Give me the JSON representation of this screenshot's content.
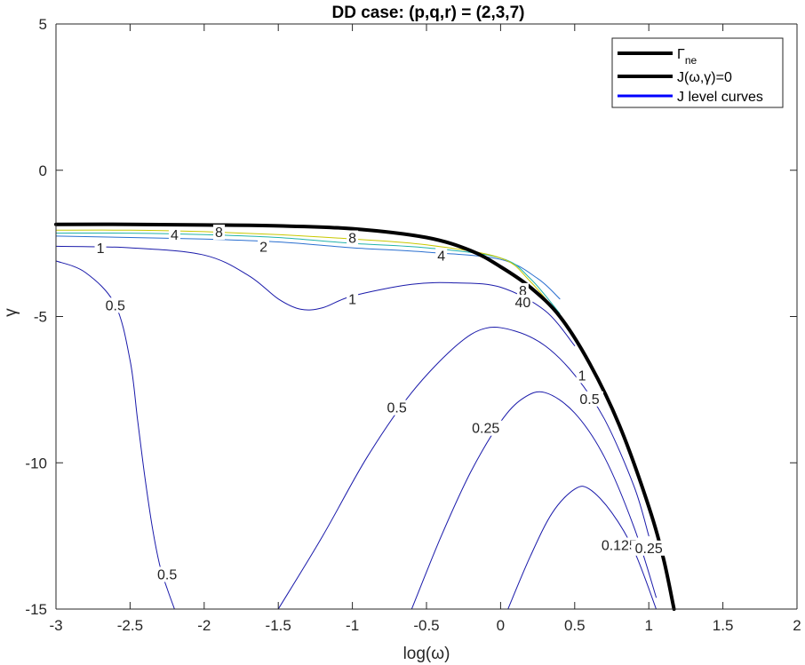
{
  "chart_data": {
    "type": "line",
    "title": "DD case: (p,q,r) = (2,3,7)",
    "xlabel": "log(ω)",
    "ylabel": "γ",
    "xlim": [
      -3,
      2
    ],
    "ylim": [
      -15,
      5
    ],
    "xticks": [
      "-3",
      "-2.5",
      "-2",
      "-1.5",
      "-1",
      "-0.5",
      "0",
      "0.5",
      "1",
      "1.5",
      "2"
    ],
    "yticks": [
      "5",
      "0",
      "-5",
      "-10",
      "-15"
    ],
    "grid": false,
    "legend": {
      "placement": "top-right",
      "entries": [
        {
          "label_main": "Γ",
          "label_sub": "ne",
          "color": "#000000"
        },
        {
          "label_main": "J(ω,γ)=0",
          "color": "#000000"
        },
        {
          "label_main": "J level curves",
          "color": "#0000ff"
        }
      ]
    },
    "series": [
      {
        "name": "Γ_ne",
        "color": "#000000",
        "x": [
          -3,
          -2.5,
          -2,
          -1.5,
          -1,
          -0.5,
          -0.2,
          0,
          0.2,
          0.4,
          0.6,
          0.8,
          1.0,
          1.1,
          1.17
        ],
        "y": [
          -1.85,
          -1.85,
          -1.87,
          -1.9,
          -2.0,
          -2.3,
          -2.75,
          -3.3,
          -4.0,
          -5.0,
          -6.6,
          -8.7,
          -11.5,
          -13.3,
          -15
        ]
      },
      {
        "name": "J level 0.5 (left branch)",
        "color": "#1a1aaa",
        "x": [
          -3,
          -2.8,
          -2.6,
          -2.5,
          -2.45,
          -2.4,
          -2.35,
          -2.3,
          -2.25,
          -2.2
        ],
        "y": [
          -3.1,
          -3.5,
          -4.6,
          -6.5,
          -8.5,
          -10.5,
          -12.2,
          -13.5,
          -14.3,
          -15
        ]
      },
      {
        "name": "J level 1",
        "color": "#1a1aaa",
        "x": [
          -3,
          -2.5,
          -2.0,
          -1.7,
          -1.5,
          -1.35,
          -1.2,
          -1.0,
          -0.6,
          -0.3,
          0,
          0.3,
          0.5
        ],
        "y": [
          -2.6,
          -2.65,
          -2.9,
          -3.6,
          -4.4,
          -4.75,
          -4.7,
          -4.3,
          -3.9,
          -3.85,
          -4.0,
          -4.8,
          -6.0
        ]
      },
      {
        "name": "J level 2",
        "color": "#2a6fd0",
        "x": [
          -3,
          -2.5,
          -2.0,
          -1.5,
          -1.0,
          -0.5,
          0,
          0.25,
          0.4
        ],
        "y": [
          -2.25,
          -2.3,
          -2.35,
          -2.45,
          -2.65,
          -2.8,
          -3.05,
          -3.7,
          -4.4
        ]
      },
      {
        "name": "J level 4",
        "color": "#20b2aa",
        "x": [
          -3,
          -2.5,
          -2.0,
          -1.5,
          -1.0,
          -0.5,
          0,
          0.2,
          0.4
        ],
        "y": [
          -2.15,
          -2.15,
          -2.2,
          -2.3,
          -2.5,
          -2.65,
          -3.0,
          -3.7,
          -4.9
        ]
      },
      {
        "name": "J level 8",
        "color": "#c8c800",
        "x": [
          -3,
          -2.5,
          -2.0,
          -1.5,
          -1.0,
          -0.5,
          0,
          0.2,
          0.4
        ],
        "y": [
          -2.05,
          -2.05,
          -2.1,
          -2.2,
          -2.35,
          -2.55,
          -3.0,
          -3.8,
          -5.0
        ]
      },
      {
        "name": "J level 0.5 (inner arch)",
        "color": "#1a1aaa",
        "x": [
          -1.5,
          -1.2,
          -0.9,
          -0.6,
          -0.3,
          -0.1,
          0.1,
          0.3,
          0.5,
          0.7,
          0.9,
          1.0
        ],
        "y": [
          -15,
          -12.5,
          -9.8,
          -7.6,
          -6.0,
          -5.4,
          -5.5,
          -6.0,
          -7.0,
          -8.5,
          -10.8,
          -12.5
        ]
      },
      {
        "name": "J level 0.25",
        "color": "#1a1aaa",
        "x": [
          -0.6,
          -0.4,
          -0.2,
          0,
          0.15,
          0.3,
          0.5,
          0.7,
          0.9,
          1.05
        ],
        "y": [
          -15,
          -12.5,
          -10.3,
          -8.6,
          -7.8,
          -7.6,
          -8.3,
          -9.8,
          -12.2,
          -14.6
        ]
      },
      {
        "name": "J level 0.125",
        "color": "#1a1aaa",
        "x": [
          0.05,
          0.2,
          0.35,
          0.5,
          0.6,
          0.75,
          0.9,
          1.05
        ],
        "y": [
          -15,
          -13.2,
          -11.7,
          -10.9,
          -10.9,
          -11.7,
          -13.0,
          -15
        ]
      }
    ],
    "contour_labels": [
      {
        "text": "4",
        "x": -2.2,
        "y": -2.2
      },
      {
        "text": "8",
        "x": -1.9,
        "y": -2.1
      },
      {
        "text": "1",
        "x": -2.7,
        "y": -2.65
      },
      {
        "text": "2",
        "x": -1.6,
        "y": -2.6
      },
      {
        "text": "8",
        "x": -1.0,
        "y": -2.3
      },
      {
        "text": "4",
        "x": -0.4,
        "y": -2.9
      },
      {
        "text": "0.5",
        "x": -2.6,
        "y": -4.6
      },
      {
        "text": "1",
        "x": -1.0,
        "y": -4.4
      },
      {
        "text": "8",
        "x": 0.15,
        "y": -4.1
      },
      {
        "text": "40",
        "x": 0.15,
        "y": -4.5
      },
      {
        "text": "0.5",
        "x": -0.7,
        "y": -8.1
      },
      {
        "text": "1",
        "x": 0.55,
        "y": -7.0
      },
      {
        "text": "0.5",
        "x": 0.6,
        "y": -7.8
      },
      {
        "text": "0.25",
        "x": -0.1,
        "y": -8.8
      },
      {
        "text": "0.125",
        "x": 0.8,
        "y": -12.8
      },
      {
        "text": "0.5",
        "x": -2.25,
        "y": -13.8
      },
      {
        "text": "0.25",
        "x": 1.0,
        "y": -12.9
      }
    ]
  }
}
